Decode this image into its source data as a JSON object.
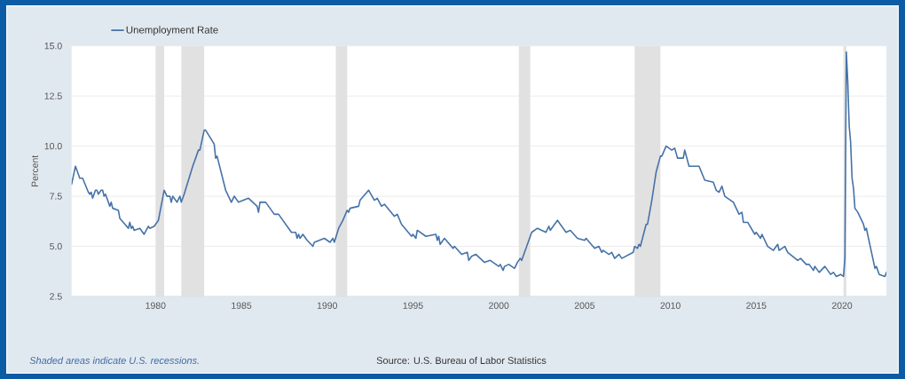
{
  "chart_data": {
    "type": "line",
    "ylabel": "Percent",
    "x": [
      "1975-02-10",
      "1975-05",
      "1975-08",
      "1975-10",
      "1976-02",
      "1976-03",
      "1976-04",
      "1976-05",
      "1976-07",
      "1976-08",
      "1976-09",
      "1976-11",
      "1976-12",
      "1977-01",
      "1977-02",
      "1977-05",
      "1977-06",
      "1977-07",
      "1977-11",
      "1977-12",
      "1978-06",
      "1978-07",
      "1978-08",
      "1978-09",
      "1978-10",
      "1979-02",
      "1979-05",
      "1979-08",
      "1979-09",
      "1979-12",
      "1980-03",
      "1980-07",
      "1980-09",
      "1980-11",
      "1980-12",
      "1981-01",
      "1981-04",
      "1981-06",
      "1981-07",
      "1981-09",
      "1982-03",
      "1982-07",
      "1982-08",
      "1982-11",
      "1982-12",
      "1983-06",
      "1983-07",
      "1983-08",
      "1984-02",
      "1984-06",
      "1984-08",
      "1984-11",
      "1985-06",
      "1985-12",
      "1986-01",
      "1986-02",
      "1986-06",
      "1986-12",
      "1987-03",
      "1987-12",
      "1988-03",
      "1988-04",
      "1988-05",
      "1988-06",
      "1988-08",
      "1988-11",
      "1989-03",
      "1989-04",
      "1989-11",
      "1990-03",
      "1990-05",
      "1990-06",
      "1990-09",
      "1990-12",
      "1991-03",
      "1991-04",
      "1991-05",
      "1991-11",
      "1991-12",
      "1992-06",
      "1992-10",
      "1992-12",
      "1993-03",
      "1993-05",
      "1993-12",
      "1994-02",
      "1994-05",
      "1994-12",
      "1995-01",
      "1995-03",
      "1995-04",
      "1995-10",
      "1996-05",
      "1996-06",
      "1996-07",
      "1996-08",
      "1996-11",
      "1997-05",
      "1997-06",
      "1997-11",
      "1998-03",
      "1998-04",
      "1998-06",
      "1998-09",
      "1999-03",
      "1999-07",
      "2000-01",
      "2000-02",
      "2000-04",
      "2000-05",
      "2000-08",
      "2000-12",
      "2001-02",
      "2001-04",
      "2001-05",
      "2001-12",
      "2002-04",
      "2002-10",
      "2002-12",
      "2003-01",
      "2003-06",
      "2003-12",
      "2004-03",
      "2004-08",
      "2005-01",
      "2005-02",
      "2005-08",
      "2005-11",
      "2006-01",
      "2006-02",
      "2006-06",
      "2006-08",
      "2006-10",
      "2007-01",
      "2007-03",
      "2007-11",
      "2007-12",
      "2008-02",
      "2008-03",
      "2008-04",
      "2008-08",
      "2008-09",
      "2008-12",
      "2009-03",
      "2009-06",
      "2009-07",
      "2009-10",
      "2010-02",
      "2010-04",
      "2010-06",
      "2010-10",
      "2010-11",
      "2011-02",
      "2011-09",
      "2012-01",
      "2012-07",
      "2012-09",
      "2012-11",
      "2013-01",
      "2013-03",
      "2013-09",
      "2014-01",
      "2014-03",
      "2014-04",
      "2014-07",
      "2014-12",
      "2015-01",
      "2015-04",
      "2015-05",
      "2015-09",
      "2016-01",
      "2016-04",
      "2016-05",
      "2016-09",
      "2016-11",
      "2017-06",
      "2017-08",
      "2017-12",
      "2018-02",
      "2018-05",
      "2018-06",
      "2018-09",
      "2019-01",
      "2019-05",
      "2019-07",
      "2019-09",
      "2019-12",
      "2020-02",
      "2020-03",
      "2020-04",
      "2020-05",
      "2020-06",
      "2020-07",
      "2020-08",
      "2020-09",
      "2020-10",
      "2020-12",
      "2021-04",
      "2021-05",
      "2021-06",
      "2021-12",
      "2022-01",
      "2022-03",
      "2022-07",
      "2022-08"
    ],
    "series": [
      {
        "name": "Unemployment Rate",
        "color": "#4572a7",
        "values": [
          8.1,
          9.0,
          8.4,
          8.4,
          7.7,
          7.6,
          7.7,
          7.4,
          7.8,
          7.8,
          7.6,
          7.8,
          7.8,
          7.5,
          7.6,
          7.0,
          7.2,
          6.9,
          6.8,
          6.4,
          5.9,
          6.2,
          5.9,
          6.0,
          5.8,
          5.9,
          5.6,
          6.0,
          5.9,
          6.0,
          6.3,
          7.8,
          7.5,
          7.5,
          7.2,
          7.5,
          7.2,
          7.5,
          7.2,
          7.6,
          9.0,
          9.8,
          9.8,
          10.8,
          10.8,
          10.1,
          9.4,
          9.5,
          7.8,
          7.2,
          7.5,
          7.2,
          7.4,
          7.0,
          6.7,
          7.2,
          7.2,
          6.6,
          6.6,
          5.7,
          5.7,
          5.4,
          5.6,
          5.4,
          5.6,
          5.3,
          5.0,
          5.2,
          5.4,
          5.2,
          5.4,
          5.2,
          5.9,
          6.3,
          6.8,
          6.7,
          6.9,
          7.0,
          7.3,
          7.8,
          7.3,
          7.4,
          7.0,
          7.1,
          6.5,
          6.6,
          6.1,
          5.5,
          5.6,
          5.4,
          5.8,
          5.5,
          5.6,
          5.3,
          5.5,
          5.1,
          5.4,
          4.9,
          5.0,
          4.6,
          4.7,
          4.3,
          4.5,
          4.6,
          4.2,
          4.3,
          4.0,
          4.1,
          3.8,
          4.0,
          4.1,
          3.9,
          4.2,
          4.4,
          4.3,
          5.7,
          5.9,
          5.7,
          6.0,
          5.8,
          6.3,
          5.7,
          5.8,
          5.4,
          5.3,
          5.4,
          4.9,
          5.0,
          4.7,
          4.8,
          4.6,
          4.7,
          4.4,
          4.6,
          4.4,
          4.7,
          5.0,
          4.9,
          5.1,
          5.0,
          6.1,
          6.1,
          7.3,
          8.7,
          9.5,
          9.5,
          10.0,
          9.8,
          9.9,
          9.4,
          9.4,
          9.8,
          9.0,
          9.0,
          8.3,
          8.2,
          7.8,
          7.7,
          8.0,
          7.5,
          7.2,
          6.6,
          6.7,
          6.2,
          6.2,
          5.6,
          5.7,
          5.4,
          5.6,
          5.0,
          4.8,
          5.1,
          4.8,
          5.0,
          4.7,
          4.3,
          4.4,
          4.1,
          4.1,
          3.8,
          4.0,
          3.7,
          4.0,
          3.6,
          3.7,
          3.5,
          3.6,
          3.5,
          4.4,
          14.7,
          13.2,
          11.0,
          10.2,
          8.4,
          7.9,
          6.9,
          6.7,
          6.1,
          5.8,
          5.9,
          3.9,
          4.0,
          3.6,
          3.5,
          3.7
        ]
      }
    ],
    "xlim": [
      "1975-02-10",
      "2022-08"
    ],
    "xticks": [
      "1980",
      "1985",
      "1990",
      "1995",
      "2000",
      "2005",
      "2010",
      "2015",
      "2020"
    ],
    "ylim": [
      2.5,
      15
    ],
    "yticks": [
      {
        "value": 2.5,
        "label": "2.5"
      },
      {
        "value": 5,
        "label": "5.0"
      },
      {
        "value": 7.5,
        "label": "7.5"
      },
      {
        "value": 10,
        "label": "10.0"
      },
      {
        "value": 12.5,
        "label": "12.5"
      },
      {
        "value": 15,
        "label": "15.0"
      }
    ],
    "grid": "y",
    "legend": "top left",
    "bands": [
      {
        "axis": "x",
        "from": "1980-01",
        "to": "1980-07",
        "color": "#e1e1e1"
      },
      {
        "axis": "x",
        "from": "1981-07",
        "to": "1982-11",
        "color": "#e1e1e1"
      },
      {
        "axis": "x",
        "from": "1990-07",
        "to": "1991-03",
        "color": "#e1e1e1"
      },
      {
        "axis": "x",
        "from": "2001-03",
        "to": "2001-11",
        "color": "#e1e1e1"
      },
      {
        "axis": "x",
        "from": "2007-12",
        "to": "2009-06",
        "color": "#e1e1e1"
      },
      {
        "axis": "x",
        "from": "2020-02",
        "to": "2020-04",
        "color": "#e1e1e1"
      }
    ],
    "annotations": [
      "Shaded areas indicate U.S. recessions.",
      "Source: U.S. Bureau of Labor Statistics"
    ]
  }
}
